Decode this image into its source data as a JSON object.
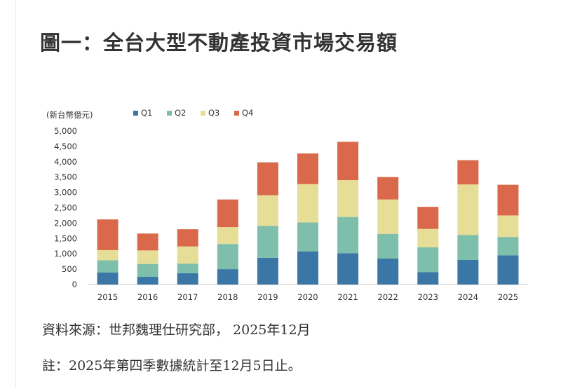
{
  "title": "圖一：全台大型不動產投資市場交易額",
  "source": "資料來源：世邦魏理仕研究部， 2025年12月",
  "note": "註：2025年第四季數據統計至12月5日止。",
  "chart_data": {
    "type": "bar",
    "stacked": true,
    "unit_label": "(新台幣億元)",
    "categories": [
      "2015",
      "2016",
      "2017",
      "2018",
      "2019",
      "2020",
      "2021",
      "2022",
      "2023",
      "2024",
      "2025"
    ],
    "series": [
      {
        "name": "Q1",
        "color": "#3a77a6",
        "values": [
          390,
          250,
          370,
          500,
          870,
          1080,
          1020,
          850,
          400,
          800,
          950
        ]
      },
      {
        "name": "Q2",
        "color": "#7dbfab",
        "values": [
          400,
          420,
          310,
          820,
          1040,
          940,
          1180,
          800,
          810,
          810,
          600
        ]
      },
      {
        "name": "Q3",
        "color": "#e6dd97",
        "values": [
          330,
          440,
          560,
          550,
          1000,
          1250,
          1200,
          1120,
          600,
          1650,
          700
        ]
      },
      {
        "name": "Q4",
        "color": "#d9694a",
        "values": [
          1000,
          550,
          560,
          900,
          1070,
          1000,
          1250,
          730,
          720,
          790,
          1000
        ]
      }
    ],
    "ylim": [
      0,
      5000
    ],
    "yticks": [
      0,
      500,
      1000,
      1500,
      2000,
      2500,
      3000,
      3500,
      4000,
      4500,
      5000
    ],
    "ytick_labels": [
      "0",
      "500",
      "1,000",
      "1,500",
      "2,000",
      "2,500",
      "3,000",
      "3,500",
      "4,000",
      "4,500",
      "5,000"
    ],
    "legend_position": "top"
  }
}
